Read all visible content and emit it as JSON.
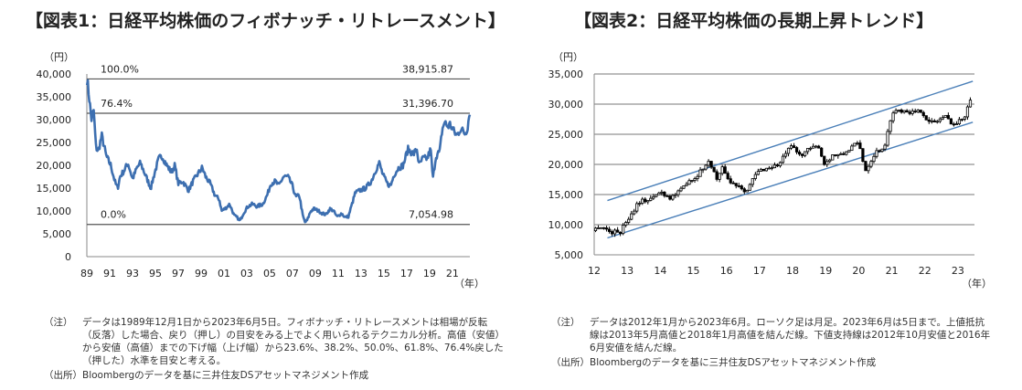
{
  "chart1": {
    "title": "【図表1：日経平均株価のフィボナッチ・リトレースメント】",
    "y_unit": "（円）",
    "x_unit": "（年）",
    "notes": [
      {
        "label": "（注）",
        "text": "データは1989年12月1日から2023年6月5日。フィボナッチ・リトレースメントは相場が反転（反落）した場合、戻り（押し）の目安をみる上でよく用いられるテクニカル分析。高値（安値）から安値（高値）までの下げ幅（上げ幅）から23.6%、38.2%、50.0%、61.8%、76.4%戻した（押した）水準を目安と考える。"
      },
      {
        "label": "（出所）",
        "text": "Bloombergのデータを基に三井住友DSアセットマネジメント作成"
      }
    ]
  },
  "chart2": {
    "title": "【図表2：日経平均株価の長期上昇トレンド】",
    "y_unit": "（円）",
    "x_unit": "（年）",
    "notes": [
      {
        "label": "（注）",
        "text": "データは2012年1月から2023年6月。ローソク足は月足。2023年6月は5日まで。上値抵抗線は2013年5月高値と2018年1月高値を結んだ線。下値支持線は2012年10月安値と2016年6月安値を結んだ線。"
      },
      {
        "label": "（出所）",
        "text": "Bloombergのデータを基に三井住友DSアセットマネジメント作成"
      }
    ]
  },
  "chart_data": [
    {
      "type": "line",
      "title": "【図表1：日経平均株価のフィボナッチ・リトレースメント】",
      "ylabel": "（円）",
      "xlabel": "（年）",
      "ylim": [
        0,
        40000
      ],
      "yticks": [
        0,
        5000,
        10000,
        15000,
        20000,
        25000,
        30000,
        35000,
        40000
      ],
      "ytick_labels": [
        "0",
        "5,000",
        "10,000",
        "15,000",
        "20,000",
        "25,000",
        "30,000",
        "35,000",
        "40,000"
      ],
      "xlim": [
        1989.9,
        2023.43
      ],
      "xticks": [
        1989.9,
        1991.9,
        1993.9,
        1995.9,
        1997.9,
        1999.9,
        2001.9,
        2003.9,
        2005.9,
        2007.9,
        2009.9,
        2011.9,
        2013.9,
        2015.9,
        2017.9,
        2019.9,
        2021.9
      ],
      "xtick_labels": [
        "89",
        "91",
        "93",
        "95",
        "97",
        "99",
        "01",
        "03",
        "05",
        "07",
        "09",
        "11",
        "13",
        "15",
        "17",
        "19",
        "21"
      ],
      "color": "#3d6fb0",
      "series": [
        {
          "x": [
            1989.92,
            1990.1,
            1990.3,
            1990.5,
            1990.7,
            1990.9,
            1991.2,
            1991.6,
            1992.0,
            1992.4,
            1992.6,
            1992.8,
            1993.2,
            1993.5,
            1993.9,
            1994.3,
            1994.6,
            1995.0,
            1995.5,
            1995.8,
            1996.2,
            1996.5,
            1996.9,
            1997.3,
            1997.6,
            1997.9,
            1998.3,
            1998.8,
            1999.2,
            1999.6,
            2000.0,
            2000.3,
            2000.7,
            2001.1,
            2001.5,
            2001.7,
            2002.0,
            2002.4,
            2002.8,
            2003.1,
            2003.3,
            2003.6,
            2004.0,
            2004.4,
            2004.8,
            2005.3,
            2005.7,
            2006.0,
            2006.4,
            2006.7,
            2007.1,
            2007.5,
            2007.9,
            2008.2,
            2008.5,
            2008.8,
            2009.0,
            2009.2,
            2009.5,
            2009.8,
            2010.2,
            2010.5,
            2010.8,
            2011.2,
            2011.5,
            2011.8,
            2012.2,
            2012.5,
            2012.8,
            2013.0,
            2013.4,
            2013.8,
            2014.3,
            2014.8,
            2015.2,
            2015.5,
            2015.8,
            2016.2,
            2016.5,
            2016.8,
            2017.2,
            2017.6,
            2018.0,
            2018.5,
            2018.8,
            2018.99,
            2019.3,
            2019.7,
            2020.0,
            2020.2,
            2020.45,
            2020.8,
            2020.99,
            2021.2,
            2021.5,
            2021.7,
            2022.0,
            2022.3,
            2022.6,
            2022.8,
            2023.0,
            2023.2,
            2023.43
          ],
          "y": [
            38916,
            35000,
            30000,
            32000,
            24000,
            23000,
            26500,
            22000,
            20000,
            16000,
            15000,
            17500,
            19000,
            20500,
            17000,
            19500,
            20500,
            18000,
            15000,
            18000,
            21500,
            22000,
            20000,
            18500,
            20000,
            16000,
            16500,
            14500,
            16500,
            18000,
            19500,
            17500,
            16000,
            13500,
            12500,
            10000,
            10500,
            11500,
            9000,
            8500,
            7800,
            9500,
            11000,
            11500,
            11000,
            11500,
            13500,
            16000,
            16500,
            15500,
            17500,
            17500,
            15500,
            13000,
            13500,
            9000,
            7500,
            8000,
            10000,
            10500,
            10000,
            9500,
            9200,
            10500,
            10000,
            8700,
            9500,
            8600,
            8800,
            10500,
            14000,
            14500,
            15000,
            16500,
            19000,
            20500,
            18000,
            16000,
            15500,
            18000,
            19500,
            20000,
            23500,
            22500,
            23500,
            20000,
            21500,
            21500,
            23500,
            17000,
            22000,
            23000,
            27500,
            29500,
            28500,
            29000,
            27500,
            26500,
            28000,
            27500,
            27000,
            28000,
            32000
          ]
        }
      ],
      "reference_lines": [
        {
          "value": 38915.87,
          "label": "100.0%",
          "value_label": "38,915.87"
        },
        {
          "value": 31396.7,
          "label": "76.4%",
          "value_label": "31,396.70"
        },
        {
          "value": 7054.98,
          "label": "0.0%",
          "value_label": "7,054.98"
        }
      ]
    },
    {
      "type": "candlestick",
      "title": "【図表2：日経平均株価の長期上昇トレンド】",
      "ylabel": "（円）",
      "xlabel": "（年）",
      "ylim": [
        5000,
        35000
      ],
      "yticks": [
        5000,
        10000,
        15000,
        20000,
        25000,
        30000,
        35000
      ],
      "ytick_labels": [
        "5,000",
        "10,000",
        "15,000",
        "20,000",
        "25,000",
        "30,000",
        "35,000"
      ],
      "xlim": [
        2012.0,
        2023.5
      ],
      "xticks": [
        2012,
        2013,
        2014,
        2015,
        2016,
        2017,
        2018,
        2019,
        2020,
        2021,
        2022,
        2023
      ],
      "xtick_labels": [
        "12",
        "13",
        "14",
        "15",
        "16",
        "17",
        "18",
        "19",
        "20",
        "21",
        "22",
        "23"
      ],
      "color": "#000000",
      "close_series": {
        "x": [
          2012.0,
          2012.1,
          2012.3,
          2012.5,
          2012.7,
          2012.8,
          2012.95,
          2013.1,
          2013.3,
          2013.4,
          2013.6,
          2013.8,
          2014.0,
          2014.3,
          2014.6,
          2014.85,
          2015.0,
          2015.3,
          2015.5,
          2015.7,
          2015.9,
          2016.1,
          2016.4,
          2016.6,
          2016.85,
          2017.0,
          2017.3,
          2017.6,
          2017.8,
          2018.0,
          2018.2,
          2018.5,
          2018.8,
          2018.95,
          2019.2,
          2019.5,
          2019.8,
          2020.0,
          2020.2,
          2020.3,
          2020.5,
          2020.8,
          2020.95,
          2021.1,
          2021.4,
          2021.7,
          2021.9,
          2022.1,
          2022.3,
          2022.6,
          2022.9,
          2023.0,
          2023.2,
          2023.3,
          2023.45
        ],
        "y": [
          9000,
          9800,
          9500,
          8700,
          8900,
          8800,
          10500,
          11500,
          13500,
          14000,
          14000,
          14500,
          15500,
          14500,
          15500,
          17500,
          17500,
          19500,
          20500,
          17500,
          19500,
          17000,
          16500,
          15500,
          18000,
          19000,
          19500,
          20000,
          22000,
          23000,
          21500,
          22500,
          23000,
          20000,
          21500,
          21500,
          23000,
          23500,
          19000,
          20000,
          22000,
          23000,
          27500,
          29000,
          29000,
          28500,
          29000,
          27000,
          27000,
          28000,
          26500,
          27000,
          28000,
          30000,
          32000
        ]
      },
      "trend_lines": [
        {
          "name": "上値抵抗線",
          "start": [
            2012.4,
            14000
          ],
          "end": [
            2023.45,
            33800
          ]
        },
        {
          "name": "下値支持線",
          "start": [
            2012.4,
            7800
          ],
          "end": [
            2023.45,
            27000
          ]
        }
      ]
    }
  ]
}
